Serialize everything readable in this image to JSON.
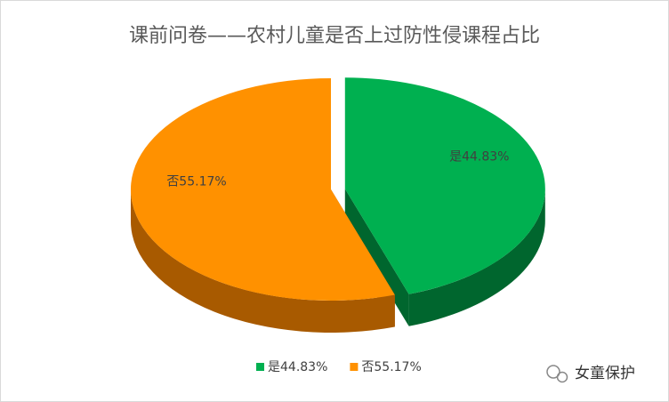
{
  "chart_data": {
    "type": "pie",
    "title": "课前问卷——农村儿童是否上过防性侵课程占比",
    "categories": [
      "是44.83%",
      "否55.17%"
    ],
    "values": [
      44.83,
      55.17
    ],
    "value_labels": [
      "是44.83%",
      "否55.17%"
    ],
    "colors": [
      "#00b050",
      "#ff9100"
    ],
    "side_colors": [
      "#00662e",
      "#a85a00"
    ],
    "legend": "bottom"
  },
  "watermark": "女童保护"
}
